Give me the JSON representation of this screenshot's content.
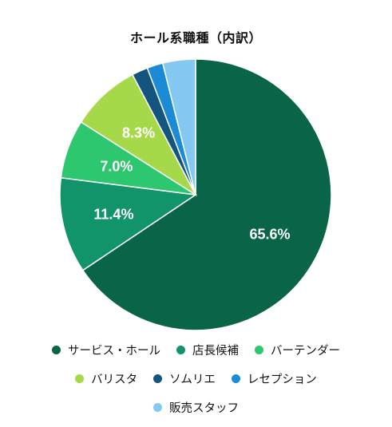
{
  "chart_data": {
    "type": "pie",
    "title": "ホール系職種（内訳）",
    "categories": [
      "サービス・ホール",
      "店長候補",
      "バーテンダー",
      "バリスタ",
      "ソムリエ",
      "レセプション",
      "販売スタッフ"
    ],
    "values": [
      65.6,
      11.4,
      7.0,
      8.3,
      1.9,
      1.9,
      3.9
    ],
    "data_labels": [
      "65.6%",
      "11.4%",
      "7.0%",
      "8.3%",
      "",
      "",
      ""
    ],
    "colors": [
      "#0a6447",
      "#11946a",
      "#2dc76f",
      "#a5d94a",
      "#13557f",
      "#1c8bd6",
      "#85c8f2"
    ],
    "legend_position": "bottom",
    "legend_rows": [
      3,
      3,
      1
    ]
  }
}
